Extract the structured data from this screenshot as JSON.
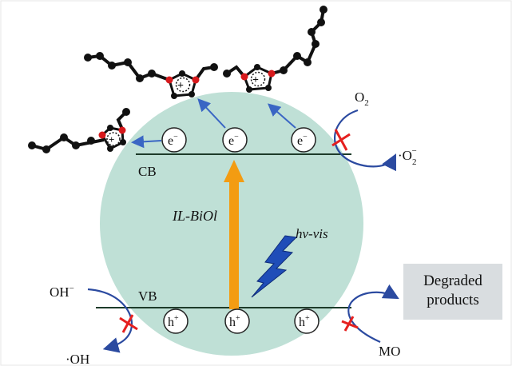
{
  "diagram": {
    "band_labels": {
      "cb": "CB",
      "vb": "VB"
    },
    "center_label": "IL-BiOl",
    "light_label": "hv-vis",
    "electron_label": "e",
    "electron_sup": "−",
    "hole_label": "h",
    "hole_sup": "+",
    "left_side": {
      "reactant_main": "OH",
      "reactant_sup": "−",
      "product": "·OH"
    },
    "right_top": {
      "reactant_main": "O",
      "reactant_sub": "2",
      "product_main": "·O",
      "product_sub": "2",
      "product_sup": "−"
    },
    "right_bottom": {
      "reactant": "MO",
      "product_line1": "Degraded",
      "product_line2": "products"
    },
    "colors": {
      "sphere": "#bfe0d6",
      "band_line": "#1d3b2a",
      "energy_arrow": "#f39c12",
      "transfer_arrow": "#3a66c4",
      "blocked_mark": "#e5201f",
      "lightning": "#1f4db8",
      "product_box": "#d9dde0",
      "atom_black": "#111111",
      "atom_red": "#d7191c"
    }
  }
}
